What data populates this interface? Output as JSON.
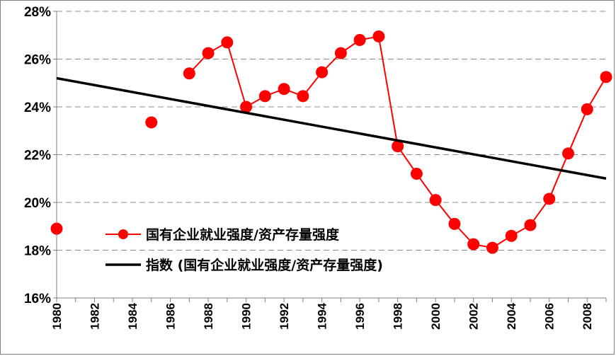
{
  "chart_data": {
    "type": "line",
    "x": [
      1980,
      1981,
      1982,
      1983,
      1984,
      1985,
      1986,
      1987,
      1988,
      1989,
      1990,
      1991,
      1992,
      1993,
      1994,
      1995,
      1996,
      1997,
      1998,
      1999,
      2000,
      2001,
      2002,
      2003,
      2004,
      2005,
      2006,
      2007,
      2008,
      2009
    ],
    "xticks": [
      "1980",
      "1982",
      "1984",
      "1986",
      "1988",
      "1990",
      "1992",
      "1994",
      "1996",
      "1998",
      "2000",
      "2002",
      "2004",
      "2006",
      "2008"
    ],
    "yticks": [
      "16%",
      "18%",
      "20%",
      "22%",
      "24%",
      "26%",
      "28%"
    ],
    "ylim": [
      16,
      28
    ],
    "xlim": [
      1980,
      2009
    ],
    "grid": "horizontal dashed",
    "legend_position": "lower-left",
    "series": [
      {
        "name": "国有企业就业强度/资产存量强度",
        "color": "#ff0000",
        "marker": "circle",
        "values": [
          18.9,
          null,
          null,
          null,
          null,
          23.35,
          null,
          25.4,
          26.25,
          26.7,
          24.0,
          24.45,
          24.75,
          24.45,
          25.45,
          26.25,
          26.8,
          26.95,
          22.35,
          21.2,
          20.1,
          19.1,
          18.25,
          18.1,
          18.6,
          19.05,
          20.15,
          22.05,
          23.9,
          25.25
        ]
      },
      {
        "name": "指数 (国有企业就业强度/资产存量强度)",
        "color": "#000000",
        "marker": "none",
        "values": [
          25.2,
          null,
          null,
          null,
          null,
          null,
          null,
          null,
          null,
          null,
          null,
          null,
          null,
          null,
          null,
          null,
          null,
          null,
          null,
          null,
          null,
          null,
          null,
          null,
          null,
          null,
          null,
          null,
          null,
          21.0
        ]
      }
    ]
  }
}
